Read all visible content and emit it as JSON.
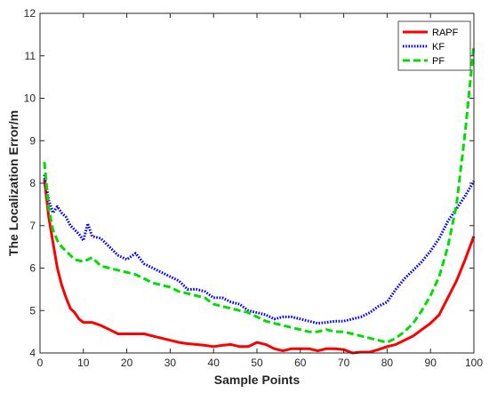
{
  "chart_data": {
    "type": "line",
    "title": "",
    "xlabel": "Sample Points",
    "ylabel": "The Localization Error/m",
    "xlim": [
      0,
      100
    ],
    "ylim": [
      4,
      12
    ],
    "xticks": [
      0,
      10,
      20,
      30,
      40,
      50,
      60,
      70,
      80,
      90,
      100
    ],
    "yticks": [
      4,
      5,
      6,
      7,
      8,
      9,
      10,
      11,
      12
    ],
    "grid": false,
    "legend_position": "top-right",
    "series": [
      {
        "name": "RAPF",
        "color": "#ff0000",
        "style": "solid",
        "x": [
          1,
          2,
          3,
          4,
          5,
          6,
          7,
          8,
          9,
          10,
          12,
          14,
          16,
          18,
          20,
          22,
          24,
          26,
          28,
          30,
          32,
          34,
          36,
          38,
          40,
          42,
          44,
          46,
          48,
          50,
          52,
          54,
          56,
          58,
          60,
          62,
          64,
          66,
          68,
          70,
          72,
          74,
          76,
          78,
          80,
          82,
          84,
          86,
          88,
          90,
          92,
          94,
          96,
          98,
          100
        ],
        "y": [
          8.1,
          7.2,
          6.6,
          6.0,
          5.6,
          5.3,
          5.05,
          4.95,
          4.8,
          4.72,
          4.72,
          4.65,
          4.55,
          4.45,
          4.45,
          4.45,
          4.45,
          4.4,
          4.35,
          4.3,
          4.25,
          4.22,
          4.2,
          4.18,
          4.15,
          4.18,
          4.2,
          4.15,
          4.15,
          4.25,
          4.2,
          4.1,
          4.05,
          4.1,
          4.1,
          4.1,
          4.05,
          4.1,
          4.1,
          4.08,
          4.0,
          4.02,
          4.02,
          4.08,
          4.15,
          4.2,
          4.3,
          4.4,
          4.55,
          4.7,
          4.9,
          5.3,
          5.7,
          6.2,
          6.75
        ]
      },
      {
        "name": "KF",
        "color": "#0000ff",
        "style": "dotted",
        "x": [
          1,
          2,
          3,
          4,
          5,
          6,
          7,
          8,
          9,
          10,
          11,
          12,
          14,
          16,
          18,
          20,
          22,
          24,
          26,
          28,
          30,
          32,
          34,
          36,
          38,
          40,
          42,
          44,
          46,
          48,
          50,
          52,
          54,
          56,
          58,
          60,
          62,
          64,
          66,
          68,
          70,
          72,
          74,
          76,
          78,
          80,
          82,
          84,
          86,
          88,
          90,
          92,
          94,
          96,
          98,
          100
        ],
        "y": [
          8.2,
          7.6,
          7.3,
          7.45,
          7.3,
          7.2,
          7.0,
          6.9,
          6.8,
          6.65,
          7.05,
          6.75,
          6.7,
          6.5,
          6.3,
          6.2,
          6.35,
          6.1,
          6.0,
          5.9,
          5.8,
          5.7,
          5.5,
          5.5,
          5.45,
          5.3,
          5.3,
          5.2,
          5.15,
          5.0,
          4.95,
          4.9,
          4.8,
          4.85,
          4.85,
          4.8,
          4.75,
          4.7,
          4.72,
          4.75,
          4.75,
          4.8,
          4.85,
          4.95,
          5.1,
          5.2,
          5.5,
          5.75,
          5.95,
          6.15,
          6.4,
          6.7,
          7.1,
          7.4,
          7.7,
          8.05
        ]
      },
      {
        "name": "PF",
        "color": "#00dd00",
        "style": "dashed",
        "x": [
          1,
          2,
          3,
          4,
          5,
          6,
          8,
          10,
          12,
          14,
          16,
          18,
          20,
          22,
          24,
          26,
          28,
          30,
          32,
          34,
          36,
          38,
          40,
          42,
          44,
          46,
          48,
          50,
          52,
          54,
          56,
          58,
          60,
          62,
          64,
          66,
          68,
          70,
          72,
          74,
          76,
          78,
          80,
          82,
          84,
          86,
          88,
          90,
          92,
          94,
          96,
          98,
          100
        ],
        "y": [
          8.5,
          7.4,
          6.9,
          6.65,
          6.5,
          6.4,
          6.2,
          6.15,
          6.25,
          6.05,
          6.0,
          5.95,
          5.9,
          5.85,
          5.75,
          5.65,
          5.6,
          5.55,
          5.45,
          5.4,
          5.35,
          5.3,
          5.15,
          5.1,
          5.05,
          5.0,
          4.95,
          4.85,
          4.75,
          4.7,
          4.65,
          4.6,
          4.55,
          4.5,
          4.5,
          4.55,
          4.5,
          4.5,
          4.45,
          4.4,
          4.35,
          4.3,
          4.25,
          4.35,
          4.5,
          4.7,
          5.0,
          5.35,
          5.8,
          6.5,
          7.5,
          9.2,
          11.25
        ]
      }
    ]
  }
}
